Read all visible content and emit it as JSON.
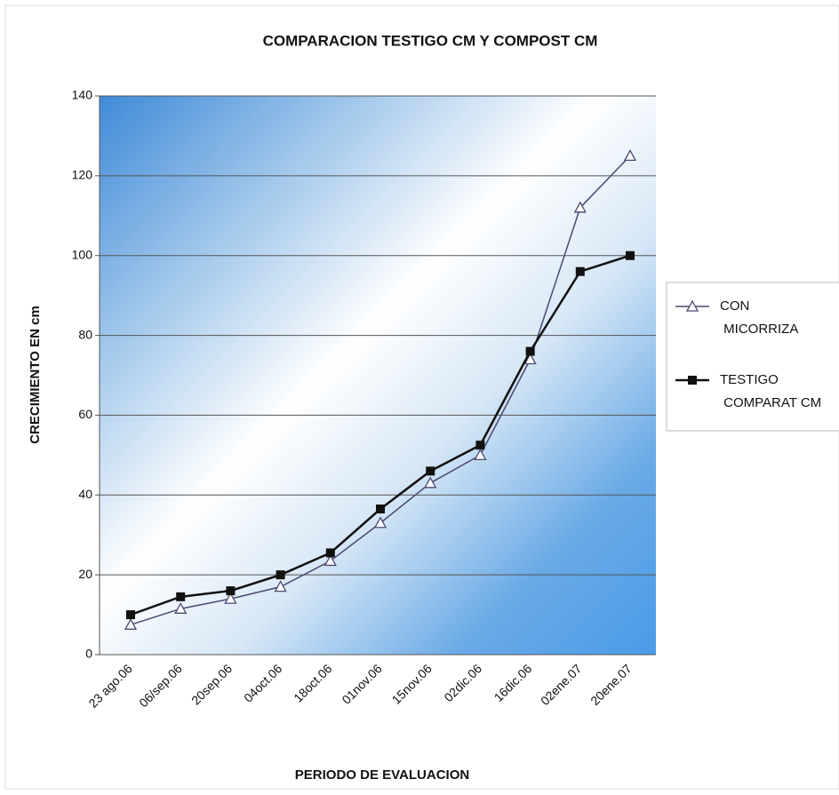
{
  "chart_data": {
    "type": "line",
    "title": "COMPARACION TESTIGO CM Y COMPOST CM",
    "x_label": "PERIODO DE EVALUACION",
    "y_label": "CRECIMIENTO EN cm",
    "categories": [
      "23 ago.06",
      "06/sep.06",
      "20sep.06",
      "04oct.06",
      "18oct.06",
      "01nov.06",
      "15nov.06",
      "02dic.06",
      "16dic.06",
      "02ene.07",
      "20ene.07"
    ],
    "series": [
      {
        "name": "CON MICORRIZA",
        "color": "#4b4870",
        "marker": "triangle",
        "values": [
          7.5,
          11.5,
          14,
          17,
          23.5,
          33,
          43,
          50,
          74,
          112,
          125
        ]
      },
      {
        "name": "TESTIGO COMPARAT CM",
        "color": "#111111",
        "marker": "square",
        "values": [
          10,
          14.5,
          16,
          20,
          25.5,
          36.5,
          46,
          52.5,
          76,
          96,
          100
        ]
      }
    ],
    "ylim": [
      0,
      140
    ],
    "yticks": [
      0,
      20,
      40,
      60,
      80,
      100,
      120,
      140
    ],
    "grid": true,
    "legend": "right"
  }
}
